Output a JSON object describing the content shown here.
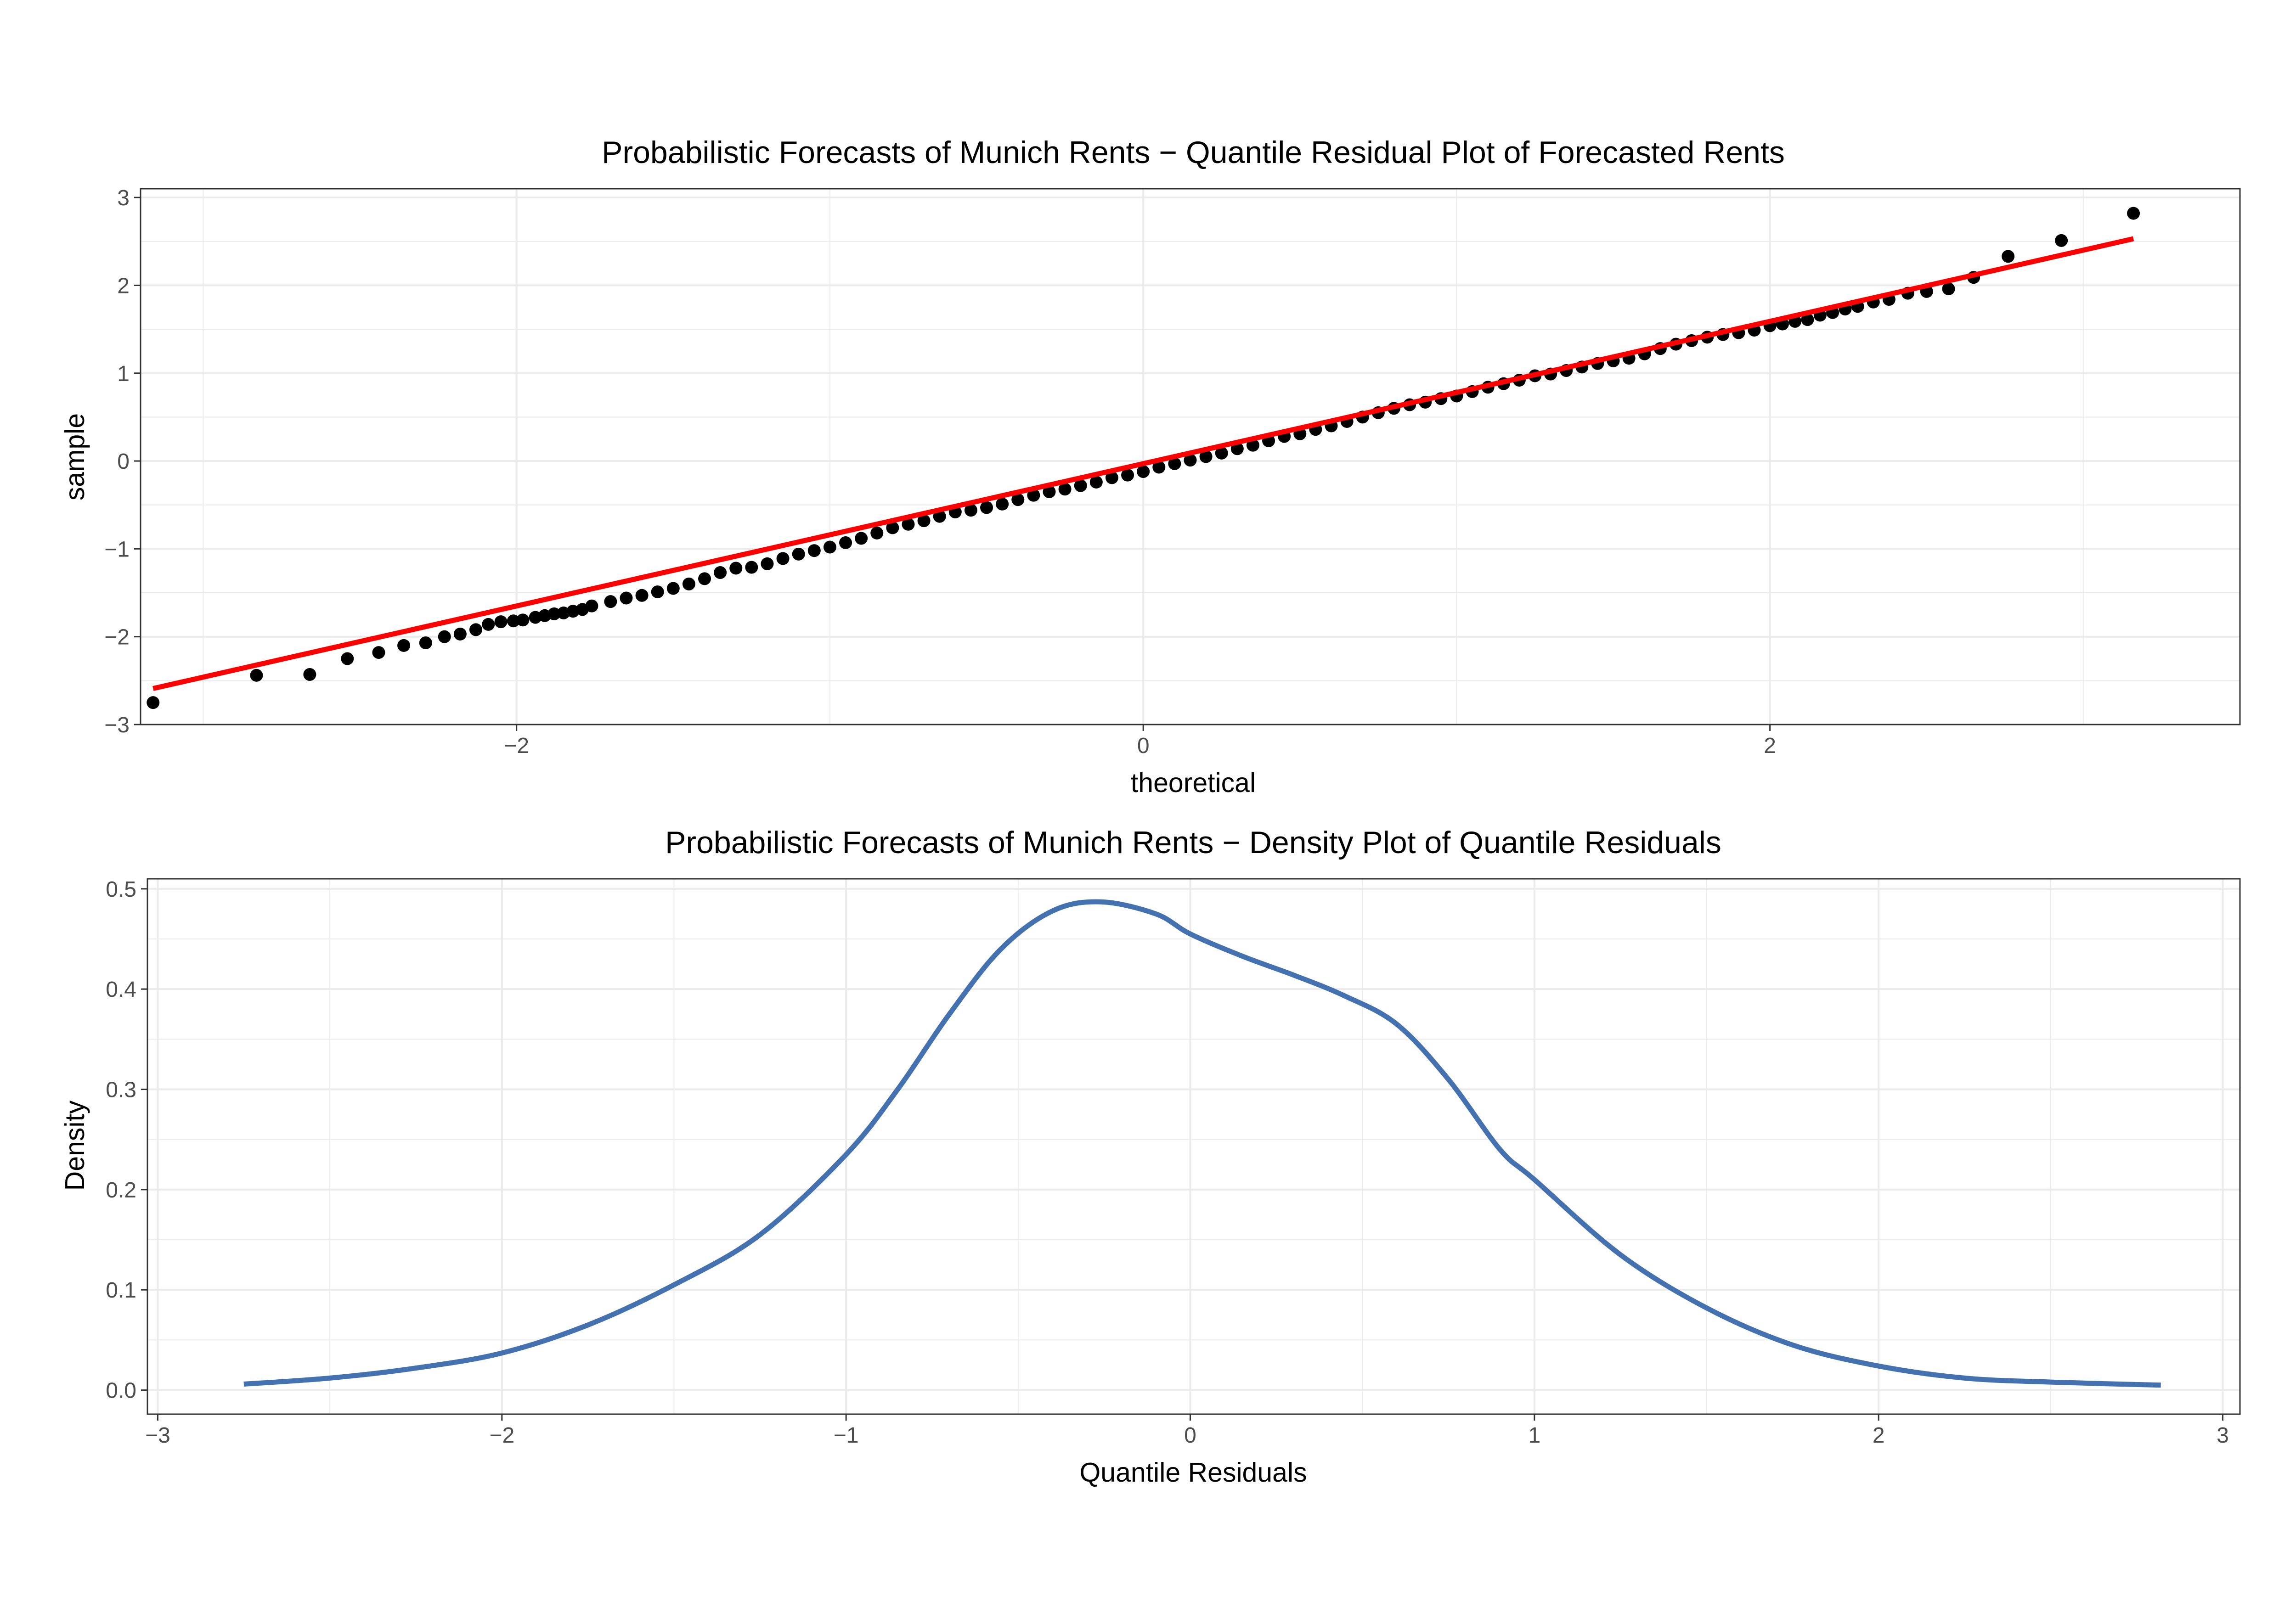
{
  "figure": {
    "background": "#ffffff"
  },
  "chart_data": [
    {
      "id": "qq",
      "type": "scatter",
      "title": "Probabilistic Forecasts of Munich Rents − Quantile Residual Plot of Forecasted Rents",
      "xlabel": "theoretical",
      "ylabel": "sample",
      "xlim": [
        -3.2,
        3.5
      ],
      "ylim": [
        -3.0,
        3.1
      ],
      "xticks": [
        -2,
        0,
        2
      ],
      "xtick_labels": [
        "−2",
        "0",
        "2"
      ],
      "yticks": [
        -3,
        -2,
        -1,
        0,
        1,
        2,
        3
      ],
      "ytick_labels": [
        "−3",
        "−2",
        "−1",
        "0",
        "1",
        "2",
        "3"
      ],
      "grid": true,
      "legend": "none",
      "points_color": "#000000",
      "points": [
        [
          -3.16,
          -2.75
        ],
        [
          -2.83,
          -2.44
        ],
        [
          -2.66,
          -2.43
        ],
        [
          -2.54,
          -2.25
        ],
        [
          -2.44,
          -2.18
        ],
        [
          -2.36,
          -2.1
        ],
        [
          -2.29,
          -2.07
        ],
        [
          -2.23,
          -2.0
        ],
        [
          -2.18,
          -1.97
        ],
        [
          -2.13,
          -1.92
        ],
        [
          -2.09,
          -1.86
        ],
        [
          -2.05,
          -1.83
        ],
        [
          -2.01,
          -1.82
        ],
        [
          -1.98,
          -1.81
        ],
        [
          -1.94,
          -1.78
        ],
        [
          -1.91,
          -1.76
        ],
        [
          -1.88,
          -1.74
        ],
        [
          -1.85,
          -1.73
        ],
        [
          -1.82,
          -1.71
        ],
        [
          -1.79,
          -1.69
        ],
        [
          -1.76,
          -1.65
        ],
        [
          -1.7,
          -1.6
        ],
        [
          -1.65,
          -1.56
        ],
        [
          -1.6,
          -1.53
        ],
        [
          -1.55,
          -1.49
        ],
        [
          -1.5,
          -1.45
        ],
        [
          -1.45,
          -1.4
        ],
        [
          -1.4,
          -1.34
        ],
        [
          -1.35,
          -1.27
        ],
        [
          -1.3,
          -1.22
        ],
        [
          -1.25,
          -1.21
        ],
        [
          -1.2,
          -1.17
        ],
        [
          -1.15,
          -1.11
        ],
        [
          -1.1,
          -1.06
        ],
        [
          -1.05,
          -1.02
        ],
        [
          -1.0,
          -0.98
        ],
        [
          -0.95,
          -0.93
        ],
        [
          -0.9,
          -0.88
        ],
        [
          -0.85,
          -0.82
        ],
        [
          -0.8,
          -0.76
        ],
        [
          -0.75,
          -0.72
        ],
        [
          -0.7,
          -0.68
        ],
        [
          -0.65,
          -0.63
        ],
        [
          -0.6,
          -0.58
        ],
        [
          -0.55,
          -0.56
        ],
        [
          -0.5,
          -0.53
        ],
        [
          -0.45,
          -0.49
        ],
        [
          -0.4,
          -0.44
        ],
        [
          -0.35,
          -0.39
        ],
        [
          -0.3,
          -0.35
        ],
        [
          -0.25,
          -0.32
        ],
        [
          -0.2,
          -0.28
        ],
        [
          -0.15,
          -0.24
        ],
        [
          -0.1,
          -0.19
        ],
        [
          -0.05,
          -0.16
        ],
        [
          0.0,
          -0.12
        ],
        [
          0.05,
          -0.07
        ],
        [
          0.1,
          -0.03
        ],
        [
          0.15,
          0.01
        ],
        [
          0.2,
          0.05
        ],
        [
          0.25,
          0.09
        ],
        [
          0.3,
          0.14
        ],
        [
          0.35,
          0.18
        ],
        [
          0.4,
          0.23
        ],
        [
          0.45,
          0.28
        ],
        [
          0.5,
          0.31
        ],
        [
          0.55,
          0.36
        ],
        [
          0.6,
          0.4
        ],
        [
          0.65,
          0.45
        ],
        [
          0.7,
          0.5
        ],
        [
          0.75,
          0.55
        ],
        [
          0.8,
          0.6
        ],
        [
          0.85,
          0.64
        ],
        [
          0.9,
          0.67
        ],
        [
          0.95,
          0.71
        ],
        [
          1.0,
          0.74
        ],
        [
          1.05,
          0.79
        ],
        [
          1.1,
          0.84
        ],
        [
          1.15,
          0.88
        ],
        [
          1.2,
          0.92
        ],
        [
          1.25,
          0.97
        ],
        [
          1.3,
          0.99
        ],
        [
          1.35,
          1.03
        ],
        [
          1.4,
          1.07
        ],
        [
          1.45,
          1.11
        ],
        [
          1.5,
          1.14
        ],
        [
          1.55,
          1.17
        ],
        [
          1.6,
          1.22
        ],
        [
          1.65,
          1.28
        ],
        [
          1.7,
          1.33
        ],
        [
          1.75,
          1.37
        ],
        [
          1.8,
          1.41
        ],
        [
          1.85,
          1.44
        ],
        [
          1.9,
          1.46
        ],
        [
          1.95,
          1.49
        ],
        [
          2.0,
          1.54
        ],
        [
          2.04,
          1.56
        ],
        [
          2.08,
          1.59
        ],
        [
          2.12,
          1.61
        ],
        [
          2.16,
          1.66
        ],
        [
          2.2,
          1.69
        ],
        [
          2.24,
          1.73
        ],
        [
          2.28,
          1.76
        ],
        [
          2.33,
          1.81
        ],
        [
          2.38,
          1.84
        ],
        [
          2.44,
          1.91
        ],
        [
          2.5,
          1.93
        ],
        [
          2.57,
          1.96
        ],
        [
          2.65,
          2.09
        ],
        [
          2.76,
          2.33
        ],
        [
          2.93,
          2.51
        ],
        [
          3.16,
          2.82
        ]
      ],
      "line_color": "#ff0000",
      "line": {
        "x": [
          -3.16,
          3.16
        ],
        "y": [
          -2.59,
          2.53
        ]
      }
    },
    {
      "id": "density",
      "type": "line",
      "title": "Probabilistic Forecasts of Munich Rents − Density Plot of Quantile Residuals",
      "xlabel": "Quantile Residuals",
      "ylabel": "Density",
      "xlim": [
        -3.03,
        3.05
      ],
      "ylim": [
        -0.024,
        0.51
      ],
      "xticks": [
        -3,
        -2,
        -1,
        0,
        1,
        2,
        3
      ],
      "xtick_labels": [
        "−3",
        "−2",
        "−1",
        "0",
        "1",
        "2",
        "3"
      ],
      "yticks": [
        0.0,
        0.1,
        0.2,
        0.3,
        0.4,
        0.5
      ],
      "ytick_labels": [
        "0.0",
        "0.1",
        "0.2",
        "0.3",
        "0.4",
        "0.5"
      ],
      "grid": true,
      "legend": "none",
      "series": [
        {
          "color": "#4472b0",
          "x": [
            -2.75,
            -2.5,
            -2.25,
            -2.0,
            -1.75,
            -1.5,
            -1.25,
            -1.0,
            -0.85,
            -0.7,
            -0.55,
            -0.4,
            -0.26,
            -0.1,
            0.0,
            0.15,
            0.3,
            0.45,
            0.6,
            0.75,
            0.9,
            1.0,
            1.25,
            1.5,
            1.75,
            2.0,
            2.25,
            2.5,
            2.82
          ],
          "y": [
            0.006,
            0.012,
            0.022,
            0.037,
            0.065,
            0.105,
            0.155,
            0.235,
            0.3,
            0.375,
            0.44,
            0.478,
            0.487,
            0.475,
            0.455,
            0.433,
            0.414,
            0.393,
            0.365,
            0.31,
            0.24,
            0.21,
            0.135,
            0.082,
            0.045,
            0.024,
            0.012,
            0.008,
            0.005
          ]
        }
      ]
    }
  ]
}
